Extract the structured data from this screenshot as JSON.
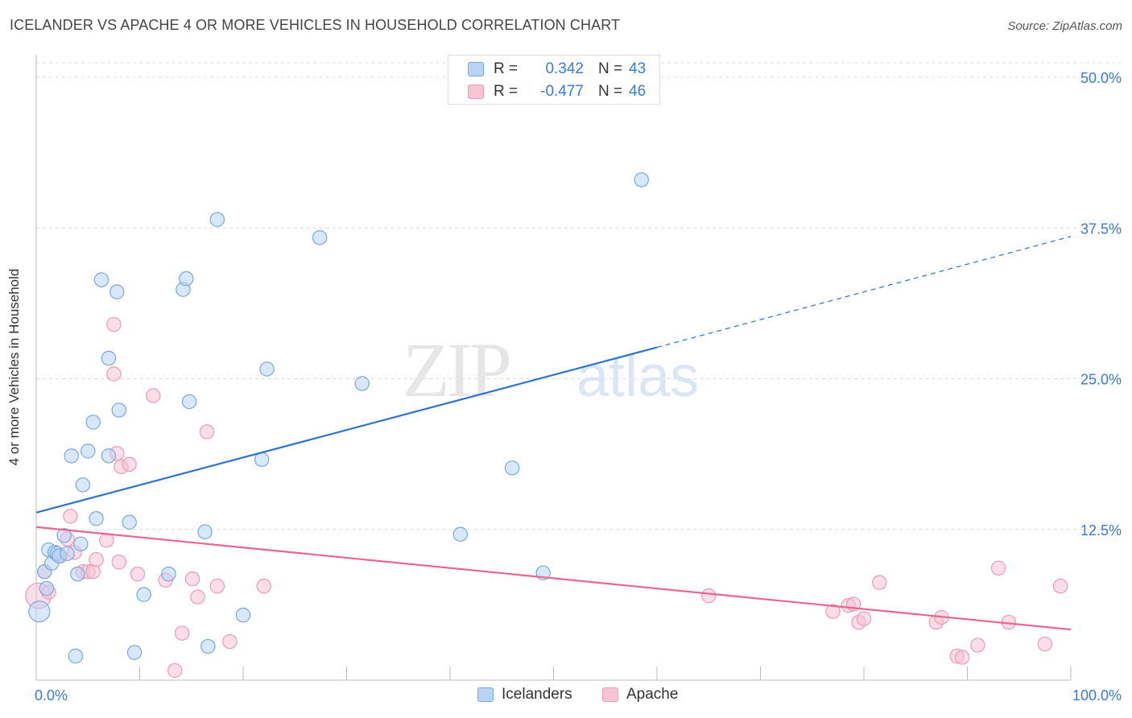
{
  "header": {
    "title": "ICELANDER VS APACHE 4 OR MORE VEHICLES IN HOUSEHOLD CORRELATION CHART",
    "source": "Source: ZipAtlas.com"
  },
  "watermark": {
    "zip": "ZIP",
    "atlas": "atlas"
  },
  "legend": {
    "rows": [
      {
        "r_label": "R =",
        "r_value": "0.342",
        "n_label": "N =",
        "n_value": "43"
      },
      {
        "r_label": "R =",
        "r_value": "-0.477",
        "n_label": "N =",
        "n_value": "46"
      }
    ]
  },
  "bottom_legend": {
    "series1": "Icelanders",
    "series2": "Apache"
  },
  "colors": {
    "blue_fill": "#b9d3f5",
    "blue_stroke": "#7aa8e0",
    "blue_line": "#2f72cc",
    "pink_fill": "#f8c3d3",
    "pink_stroke": "#ee9bb5",
    "pink_line": "#e8668f",
    "tick_label": "#3a7bd5"
  },
  "chart_data": {
    "type": "scatter",
    "title": "ICELANDER VS APACHE 4 OR MORE VEHICLES IN HOUSEHOLD CORRELATION CHART",
    "xlabel": "",
    "ylabel": "4 or more Vehicles in Household",
    "xlim": [
      0,
      100
    ],
    "ylim": [
      0,
      50
    ],
    "x_tick_labels": [
      "0.0%",
      "100.0%"
    ],
    "y_ticks": [
      12.5,
      25.0,
      37.5,
      50.0
    ],
    "y_tick_labels": [
      "12.5%",
      "25.0%",
      "37.5%",
      "50.0%"
    ],
    "series": [
      {
        "name": "Icelanders",
        "r": 0.342,
        "n": 43,
        "trend": {
          "x0": 0,
          "y0": 13.9,
          "x1": 60,
          "y1": 27.6,
          "dash_to_x": 100,
          "dash_to_y": 36.8
        },
        "points": [
          [
            0.3,
            5.7,
            18
          ],
          [
            0.8,
            9.0,
            12
          ],
          [
            1.0,
            7.6,
            12
          ],
          [
            1.2,
            10.8,
            12
          ],
          [
            1.5,
            9.7,
            12
          ],
          [
            1.8,
            10.6,
            12
          ],
          [
            2.0,
            10.5,
            12
          ],
          [
            2.2,
            10.3,
            12
          ],
          [
            2.7,
            12.0,
            12
          ],
          [
            3.0,
            10.5,
            12
          ],
          [
            3.4,
            18.6,
            12
          ],
          [
            3.8,
            2.0,
            12
          ],
          [
            4.0,
            8.8,
            12
          ],
          [
            4.3,
            11.3,
            12
          ],
          [
            4.5,
            16.2,
            12
          ],
          [
            5.0,
            19.0,
            12
          ],
          [
            5.5,
            21.4,
            12
          ],
          [
            5.8,
            13.4,
            12
          ],
          [
            6.3,
            33.2,
            12
          ],
          [
            7.0,
            26.7,
            12
          ],
          [
            7.0,
            18.6,
            12
          ],
          [
            7.8,
            32.2,
            12
          ],
          [
            8.0,
            22.4,
            12
          ],
          [
            9.0,
            13.1,
            12
          ],
          [
            9.5,
            2.3,
            12
          ],
          [
            10.4,
            7.1,
            12
          ],
          [
            12.8,
            8.8,
            12
          ],
          [
            14.2,
            32.4,
            12
          ],
          [
            14.5,
            33.3,
            12
          ],
          [
            14.8,
            23.1,
            12
          ],
          [
            16.3,
            12.3,
            12
          ],
          [
            16.6,
            2.8,
            12
          ],
          [
            17.5,
            38.2,
            12
          ],
          [
            20.0,
            5.4,
            12
          ],
          [
            21.8,
            18.3,
            12
          ],
          [
            22.3,
            25.8,
            12
          ],
          [
            27.4,
            36.7,
            12
          ],
          [
            31.5,
            24.6,
            12
          ],
          [
            41.0,
            12.1,
            12
          ],
          [
            46.0,
            17.6,
            12
          ],
          [
            49.0,
            8.9,
            12
          ],
          [
            58.5,
            41.5,
            12
          ]
        ]
      },
      {
        "name": "Apache",
        "r": -0.477,
        "n": 46,
        "trend": {
          "x0": 0,
          "y0": 12.7,
          "x1": 100,
          "y1": 4.2
        },
        "points": [
          [
            0.2,
            7.0,
            22
          ],
          [
            0.8,
            9.0,
            12
          ],
          [
            1.2,
            7.3,
            12
          ],
          [
            2.3,
            10.3,
            12
          ],
          [
            3.0,
            11.7,
            12
          ],
          [
            3.3,
            13.6,
            12
          ],
          [
            3.7,
            10.6,
            12
          ],
          [
            4.5,
            9.0,
            12
          ],
          [
            5.0,
            9.0,
            12
          ],
          [
            5.5,
            9.0,
            12
          ],
          [
            5.8,
            10.0,
            12
          ],
          [
            6.8,
            11.6,
            12
          ],
          [
            7.5,
            29.5,
            12
          ],
          [
            7.5,
            25.4,
            12
          ],
          [
            7.8,
            18.8,
            12
          ],
          [
            8.0,
            9.8,
            12
          ],
          [
            8.2,
            17.7,
            12
          ],
          [
            9.0,
            17.9,
            12
          ],
          [
            9.8,
            8.8,
            12
          ],
          [
            11.3,
            23.6,
            12
          ],
          [
            12.5,
            8.3,
            12
          ],
          [
            13.4,
            0.8,
            12
          ],
          [
            14.1,
            3.9,
            12
          ],
          [
            15.1,
            8.4,
            12
          ],
          [
            15.6,
            6.9,
            12
          ],
          [
            16.5,
            20.6,
            12
          ],
          [
            17.5,
            7.8,
            12
          ],
          [
            18.7,
            3.2,
            12
          ],
          [
            22.0,
            7.8,
            12
          ],
          [
            65.0,
            7.0,
            12
          ],
          [
            77.0,
            5.7,
            12
          ],
          [
            78.5,
            6.2,
            12
          ],
          [
            79.0,
            6.3,
            12
          ],
          [
            79.5,
            4.8,
            12
          ],
          [
            80.0,
            5.1,
            12
          ],
          [
            81.5,
            8.1,
            12
          ],
          [
            87.0,
            4.8,
            12
          ],
          [
            87.5,
            5.2,
            12
          ],
          [
            89.0,
            2.0,
            12
          ],
          [
            89.5,
            1.9,
            12
          ],
          [
            91.0,
            2.9,
            12
          ],
          [
            93.0,
            9.3,
            12
          ],
          [
            94.0,
            4.8,
            12
          ],
          [
            97.5,
            3.0,
            12
          ],
          [
            99.0,
            7.8,
            12
          ]
        ]
      }
    ]
  }
}
